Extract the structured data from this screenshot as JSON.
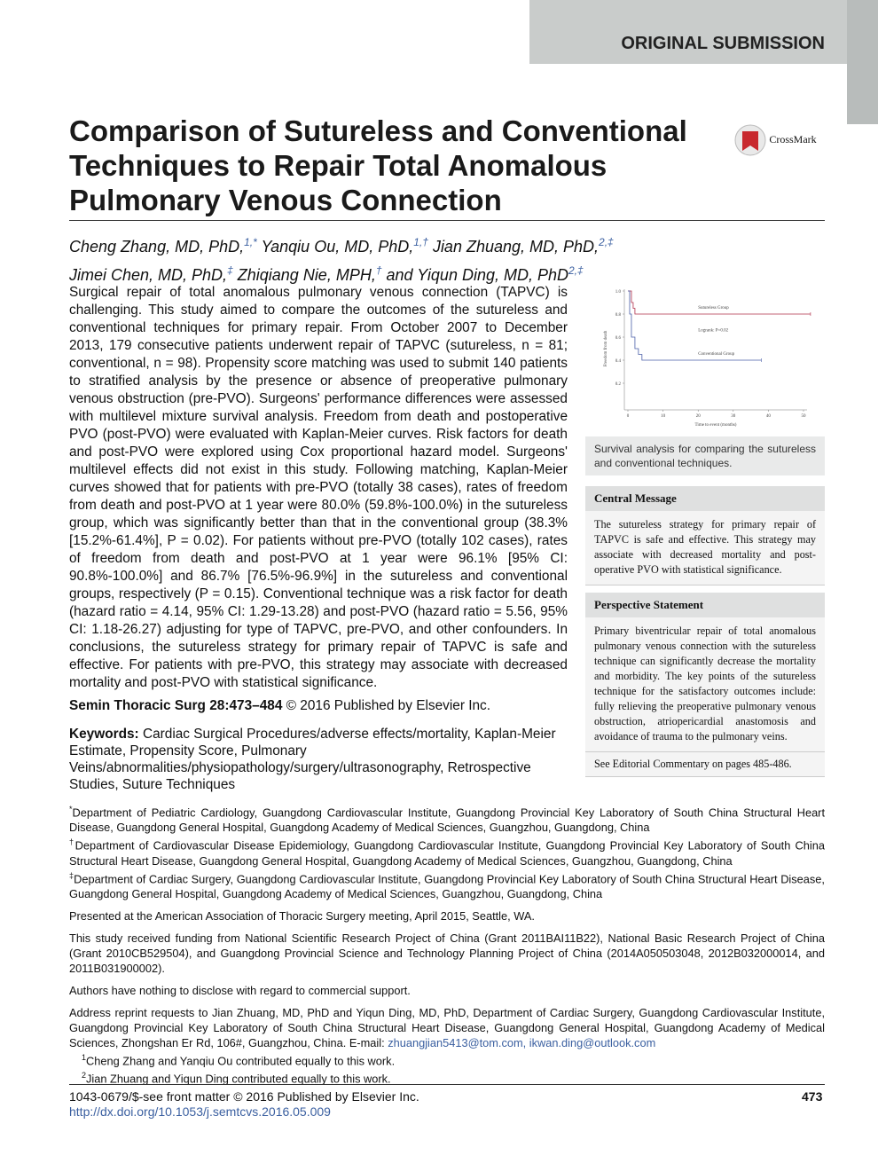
{
  "header": {
    "label": "ORIGINAL SUBMISSION"
  },
  "title": "Comparison of Sutureless and Conventional Techniques to Repair Total Anomalous Pulmonary Venous Connection",
  "crossmark": "CrossMark",
  "authors": [
    {
      "name": "Cheng Zhang, MD, PhD,",
      "sup": "1,*"
    },
    {
      "name": "Yanqiu Ou, MD, PhD,",
      "sup": "1,†"
    },
    {
      "name": "Jian Zhuang, MD, PhD,",
      "sup": "2,‡"
    },
    {
      "name": "Jimei Chen, MD, PhD,",
      "sup": "‡"
    },
    {
      "name": "Zhiqiang Nie, MPH,",
      "sup": "†"
    },
    {
      "name": "and Yiqun Ding, MD, PhD",
      "sup": "2,‡"
    }
  ],
  "abstract": "Surgical repair of total anomalous pulmonary venous connection (TAPVC) is challenging. This study aimed to compare the outcomes of the sutureless and conventional techniques for primary repair. From October 2007 to December 2013, 179 consecutive patients underwent repair of TAPVC (sutureless, n = 81; conventional, n = 98). Propensity score matching was used to submit 140 patients to stratified analysis by the presence or absence of preoperative pulmonary venous obstruction (pre-PVO). Surgeons' performance differences were assessed with multilevel mixture survival analysis. Freedom from death and postoperative PVO (post-PVO) were evaluated with Kaplan-Meier curves. Risk factors for death and post-PVO were explored using Cox proportional hazard model. Surgeons' multilevel effects did not exist in this study. Following matching, Kaplan-Meier curves showed that for patients with pre-PVO (totally 38 cases), rates of freedom from death and post-PVO at 1 year were 80.0% (59.8%-100.0%) in the sutureless group, which was significantly better than that in the conventional group (38.3% [15.2%-61.4%], P = 0.02). For patients without pre-PVO (totally 102 cases), rates of freedom from death and post-PVO at 1 year were 96.1% [95% CI: 90.8%-100.0%] and 86.7% [76.5%-96.9%] in the sutureless and conventional groups, respectively (P = 0.15). Conventional technique was a risk factor for death (hazard ratio = 4.14, 95% CI: 1.29-13.28) and post-PVO (hazard ratio = 5.56, 95% CI: 1.18-26.27) adjusting for type of TAPVC, pre-PVO, and other confounders. In conclusions, the sutureless strategy for primary repair of TAPVC is safe and effective. For patients with pre-PVO, this strategy may associate with decreased mortality and post-PVO with statistical significance.",
  "citation": {
    "journal": "Semin Thoracic Surg 28:473–484",
    "rest": "© 2016 Published by Elsevier Inc."
  },
  "keywords": {
    "label": "Keywords:",
    "text": "Cardiac Surgical Procedures/adverse effects/mortality, Kaplan-Meier Estimate, Propensity Score, Pulmonary Veins/abnormalities/physiopathology/surgery/ultrasonography, Retrospective Studies, Suture Techniques"
  },
  "chart_data": {
    "type": "step",
    "xlabel": "Time to event (months)",
    "ylabel": "Freedom from death",
    "xlim": [
      0,
      50
    ],
    "ylim": [
      0,
      1
    ],
    "xticks": [
      0,
      10,
      20,
      30,
      40,
      50
    ],
    "yticks": [
      0.2,
      0.4,
      0.6,
      0.8,
      {
        "value": 1,
        "label": "1.0"
      }
    ],
    "annotation": "Logrank: P=0.02",
    "series": [
      {
        "name": "Sutureless Group",
        "color": "#b0304a",
        "x": [
          0,
          1,
          1.5,
          2,
          3,
          52
        ],
        "values": [
          1,
          0.9,
          0.85,
          0.8,
          0.8,
          0.8
        ]
      },
      {
        "name": "Conventional Group",
        "color": "#4a5fa8",
        "x": [
          0,
          0.5,
          1,
          2,
          3,
          4,
          38
        ],
        "values": [
          1,
          0.8,
          0.6,
          0.5,
          0.45,
          0.4,
          0.4
        ]
      }
    ]
  },
  "figure_caption": "Survival analysis for comparing the sutureless and conventional techniques.",
  "central_message": {
    "heading": "Central Message",
    "text": "The sutureless strategy for primary repair of TAPVC is safe and effective. This strategy may associate with decreased mortality and post-operative PVO with statistical significance."
  },
  "perspective": {
    "heading": "Perspective Statement",
    "text": "Primary biventricular repair of total anomalous pulmonary venous connection with the sutureless technique can significantly decrease the mortality and morbidity. The key points of the sutureless technique for the satisfactory outcomes include: fully relieving the preoperative pulmonary venous obstruction, atriopericardial anastomosis and avoidance of trauma to the pulmonary veins."
  },
  "editorial": "See Editorial Commentary on pages 485-486.",
  "footnotes": {
    "affiliations": [
      {
        "symbol": "*",
        "text": "Department of Pediatric Cardiology, Guangdong Cardiovascular Institute, Guangdong Provincial Key Laboratory of South China Structural Heart Disease, Guangdong General Hospital, Guangdong Academy of Medical Sciences, Guangzhou, Guangdong, China"
      },
      {
        "symbol": "†",
        "text": "Department of Cardiovascular Disease Epidemiology, Guangdong Cardiovascular Institute, Guangdong Provincial Key Laboratory of South China Structural Heart Disease, Guangdong General Hospital, Guangdong Academy of Medical Sciences, Guangzhou, Guangdong, China"
      },
      {
        "symbol": "‡",
        "text": "Department of Cardiac Surgery, Guangdong Cardiovascular Institute, Guangdong Provincial Key Laboratory of South China Structural Heart Disease, Guangdong General Hospital, Guangdong Academy of Medical Sciences, Guangzhou, Guangdong, China"
      }
    ],
    "presented": "Presented at the American Association of Thoracic Surgery meeting, April 2015, Seattle, WA.",
    "funding": "This study received funding from National Scientific Research Project of China (Grant 2011BAI11B22), National Basic Research Project of China (Grant 2010CB529504), and Guangdong Provincial Science and Technology Planning Project of China (2014A050503048, 2012B032000014, and 2011B031900002).",
    "disclosure": "Authors have nothing to disclose with regard to commercial support.",
    "address": "Address reprint requests to Jian Zhuang, MD, PhD and Yiqun Ding, MD, PhD, Department of Cardiac Surgery, Guangdong Cardiovascular Institute, Guangdong Provincial Key Laboratory of South China Structural Heart Disease, Guangdong General Hospital, Guangdong Academy of Medical Sciences, Zhongshan Er Rd, 106#, Guangzhou, China. E-mail:",
    "emails": "zhuangjian5413@tom.com, ikwan.ding@outlook.com",
    "contributions": [
      {
        "symbol": "1",
        "text": "Cheng Zhang and Yanqiu Ou contributed equally to this work."
      },
      {
        "symbol": "2",
        "text": "Jian Zhuang and Yiqun Ding contributed equally to this work."
      }
    ]
  },
  "footer": {
    "issn": "1043-0679/$-see front matter © 2016 Published by Elsevier Inc.",
    "doi": "http://dx.doi.org/10.1053/j.semtcvs.2016.05.009",
    "page": "473"
  }
}
